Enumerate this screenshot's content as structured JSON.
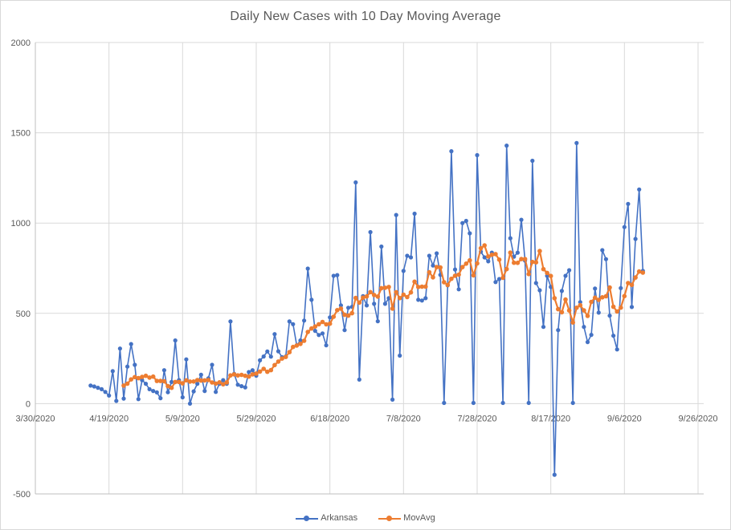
{
  "window": {
    "background": "#FFFFFF",
    "border_color": "#D9D9D9"
  },
  "chart": {
    "title": "Daily New Cases with 10 Day Moving Average",
    "title_color": "#595959",
    "axis_label_color": "#595959",
    "gridline_color": "#D9D9D9",
    "axis_line_color": "#BFBFBF",
    "legend": [
      {
        "label": "Arkansas",
        "color": "#4472C4"
      },
      {
        "label": "MovAvg",
        "color": "#ED7D31"
      }
    ]
  },
  "chart_data": {
    "type": "line",
    "title": "Daily New Cases with 10 Day Moving Average",
    "xlabel": "",
    "ylabel": "",
    "grid": true,
    "legend_position": "bottom",
    "x_tick_labels": [
      "3/30/2020",
      "4/19/2020",
      "5/9/2020",
      "5/29/2020",
      "6/18/2020",
      "7/8/2020",
      "7/28/2020",
      "8/17/2020",
      "9/6/2020",
      "9/26/2020"
    ],
    "x_tick_day_offsets": [
      0,
      20,
      40,
      60,
      80,
      100,
      120,
      140,
      160,
      180
    ],
    "x_axis_span_days": 180,
    "y_ticks": [
      -500,
      0,
      500,
      1000,
      1500,
      2000
    ],
    "y_range": [
      -500,
      2000
    ],
    "series_start_date": "4/14/2020",
    "series_start_day_offset": 15,
    "frequency": "daily",
    "series": [
      {
        "name": "Arkansas",
        "color": "#4472C4",
        "marker": "circle",
        "values": [
          100,
          95,
          88,
          80,
          65,
          45,
          180,
          15,
          305,
          28,
          205,
          330,
          215,
          25,
          130,
          110,
          80,
          70,
          62,
          30,
          185,
          63,
          120,
          350,
          130,
          35,
          245,
          0,
          68,
          110,
          160,
          70,
          140,
          215,
          65,
          110,
          130,
          110,
          455,
          165,
          105,
          97,
          90,
          175,
          185,
          155,
          240,
          261,
          289,
          260,
          385,
          290,
          257,
          261,
          455,
          440,
          323,
          350,
          460,
          748,
          575,
          403,
          380,
          389,
          323,
          478,
          708,
          712,
          544,
          407,
          531,
          536,
          1225,
          133,
          595,
          544,
          950,
          553,
          456,
          870,
          553,
          584,
          22,
          1045,
          266,
          735,
          819,
          810,
          1052,
          575,
          571,
          584,
          819,
          765,
          832,
          713,
          4,
          655,
          1398,
          743,
          633,
          1000,
          1012,
          943,
          4,
          1376,
          841,
          810,
          788,
          836,
          673,
          690,
          4,
          1429,
          916,
          814,
          836,
          1018,
          792,
          4,
          1345,
          668,
          628,
          425,
          708,
          646,
          -394,
          407,
          624,
          708,
          739,
          4,
          1443,
          562,
          425,
          341,
          381,
          637,
          504,
          850,
          800,
          487,
          376,
          300,
          640,
          978,
          1106,
          535,
          912,
          1186,
          735
        ]
      },
      {
        "name": "MovAvg",
        "color": "#ED7D31",
        "marker": "circle",
        "derived_from": "Arkansas",
        "derivation": "10-day trailing moving average",
        "window": 10
      }
    ]
  }
}
